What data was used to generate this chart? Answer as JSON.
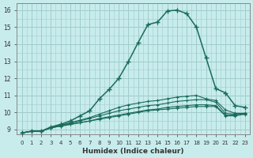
{
  "xlabel": "Humidex (Indice chaleur)",
  "ylabel": "",
  "xlim": [
    -0.5,
    23.5
  ],
  "ylim": [
    8.7,
    16.4
  ],
  "xticks": [
    0,
    1,
    2,
    3,
    4,
    5,
    6,
    7,
    8,
    9,
    10,
    11,
    12,
    13,
    14,
    15,
    16,
    17,
    18,
    19,
    20,
    21,
    22,
    23
  ],
  "yticks": [
    9,
    10,
    11,
    12,
    13,
    14,
    15,
    16
  ],
  "bg_color": "#c8ecec",
  "grid_color": "#a0cccc",
  "line_color": "#1a6b5a",
  "main_curve_x": [
    0,
    1,
    2,
    3,
    4,
    5,
    6,
    7,
    8,
    9,
    10,
    11,
    12,
    13,
    14,
    15,
    16,
    17,
    18,
    19,
    20,
    21,
    22,
    23
  ],
  "main_curve_y": [
    8.8,
    8.9,
    8.9,
    9.15,
    9.3,
    9.5,
    9.8,
    10.1,
    10.8,
    11.35,
    12.0,
    13.0,
    14.1,
    15.15,
    15.3,
    15.95,
    16.0,
    15.8,
    15.0,
    13.2,
    11.4,
    11.15,
    10.4,
    10.3
  ],
  "flat_curves": [
    [
      8.8,
      8.9,
      8.9,
      9.1,
      9.2,
      9.3,
      9.4,
      9.5,
      9.6,
      9.7,
      9.8,
      9.9,
      10.0,
      10.1,
      10.15,
      10.2,
      10.25,
      10.3,
      10.35,
      10.35,
      10.35,
      9.8,
      9.8,
      9.9
    ],
    [
      8.8,
      8.9,
      8.9,
      9.1,
      9.2,
      9.3,
      9.4,
      9.5,
      9.65,
      9.75,
      9.85,
      9.95,
      10.05,
      10.15,
      10.2,
      10.3,
      10.35,
      10.4,
      10.45,
      10.45,
      10.4,
      9.85,
      9.85,
      9.92
    ],
    [
      8.8,
      8.9,
      8.9,
      9.1,
      9.25,
      9.35,
      9.5,
      9.65,
      9.8,
      9.95,
      10.1,
      10.2,
      10.3,
      10.4,
      10.45,
      10.55,
      10.65,
      10.7,
      10.75,
      10.75,
      10.6,
      9.95,
      9.9,
      9.95
    ],
    [
      8.8,
      8.9,
      8.9,
      9.1,
      9.25,
      9.4,
      9.55,
      9.7,
      9.9,
      10.1,
      10.3,
      10.45,
      10.55,
      10.65,
      10.7,
      10.8,
      10.9,
      10.95,
      11.0,
      10.8,
      10.7,
      10.15,
      9.95,
      9.95
    ]
  ]
}
